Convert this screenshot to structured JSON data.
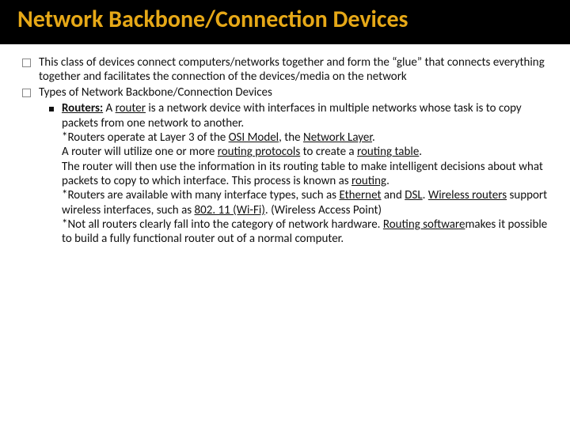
{
  "colors": {
    "titleBg": "#000000",
    "titleFg": "#e6a817",
    "bodyFg": "#111111",
    "bodyBg": "#ffffff"
  },
  "title": "Network Backbone/Connection Devices",
  "bullets": {
    "b1": "This class of devices connect computers/networks together and form the “glue” that connects everything together and facilitates the connection of the devices/media on the network",
    "b2": "Types of Network Backbone/Connection Devices"
  },
  "router": {
    "lead_bold": "Routers:",
    "lead_a": " A ",
    "lead_link": "router",
    "lead_b": " is a network device with interfaces in multiple networks whose task is to copy packets from one network to another.",
    "l2a": "*Routers operate at Layer 3 of the ",
    "l2_link1": "OSI Model",
    "l2b": ", the ",
    "l2_link2": "Network Layer",
    "l2c": ".",
    "l3a": "A router will utilize one or more ",
    "l3_link1": "routing protocols",
    "l3b": " to create a ",
    "l3_link2": "routing table",
    "l3c": ".",
    "l4": "The router will then use the information in its routing table to make intelligent decisions about what packets to copy to which interface. This process is known as ",
    "l4_link": "routing",
    "l4b": ".",
    "l5a": "*Routers are available with many interface types, such as ",
    "l5_link1": "Ethernet",
    "l5b": " and ",
    "l5_link2": "DSL",
    "l5c": ". ",
    "l5_link3": "Wireless routers",
    "l5d": " support wireless interfaces, such as ",
    "l5_link4": "802. 11 (Wi-Fi)",
    "l5e": ". (Wireless Access Point)",
    "l6a": "*Not all routers clearly fall into the category of network hardware. ",
    "l6_link": "Routing software",
    "l6b": "makes it possible to build a fully functional router out of a normal computer."
  }
}
